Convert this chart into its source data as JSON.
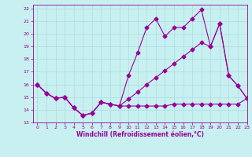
{
  "xlabel": "Windchill (Refroidissement éolien,°C)",
  "xlim": [
    -0.5,
    23
  ],
  "ylim": [
    13,
    22.3
  ],
  "xticks": [
    0,
    1,
    2,
    3,
    4,
    5,
    6,
    7,
    8,
    9,
    10,
    11,
    12,
    13,
    14,
    15,
    16,
    17,
    18,
    19,
    20,
    21,
    22,
    23
  ],
  "yticks": [
    13,
    14,
    15,
    16,
    17,
    18,
    19,
    20,
    21,
    22
  ],
  "background_color": "#c8f0f0",
  "grid_color": "#aadddd",
  "line_color": "#990099",
  "series1_x": [
    0,
    1,
    2,
    3,
    4,
    5,
    6,
    7,
    8,
    9,
    10,
    11,
    12,
    13,
    14,
    15,
    16,
    17,
    18,
    19,
    20,
    21,
    22,
    23
  ],
  "series1_y": [
    16.0,
    15.3,
    14.9,
    15.0,
    14.15,
    13.55,
    13.75,
    14.6,
    14.45,
    14.3,
    14.3,
    14.3,
    14.3,
    14.3,
    14.3,
    14.45,
    14.45,
    14.45,
    14.45,
    14.45,
    14.45,
    14.45,
    14.45,
    14.9
  ],
  "series2_x": [
    0,
    1,
    2,
    3,
    4,
    5,
    6,
    7,
    8,
    9,
    10,
    11,
    12,
    13,
    14,
    15,
    16,
    17,
    18,
    19,
    20,
    21,
    22,
    23
  ],
  "series2_y": [
    16.0,
    15.3,
    14.9,
    15.0,
    14.15,
    13.55,
    13.75,
    14.6,
    14.45,
    14.3,
    16.7,
    18.5,
    20.5,
    21.2,
    19.8,
    20.5,
    20.5,
    21.2,
    21.9,
    19.0,
    20.8,
    16.7,
    15.9,
    14.9
  ],
  "series3_x": [
    0,
    1,
    2,
    3,
    4,
    5,
    6,
    7,
    8,
    9,
    10,
    11,
    12,
    13,
    14,
    15,
    16,
    17,
    18,
    19,
    20,
    21,
    22,
    23
  ],
  "series3_y": [
    16.0,
    15.3,
    14.9,
    15.0,
    14.15,
    13.55,
    13.75,
    14.6,
    14.45,
    14.3,
    14.85,
    15.4,
    16.0,
    16.55,
    17.1,
    17.65,
    18.2,
    18.75,
    19.3,
    19.0,
    20.8,
    16.7,
    15.9,
    14.9
  ],
  "marker": "D",
  "markersize": 2.5,
  "linewidth": 0.8
}
